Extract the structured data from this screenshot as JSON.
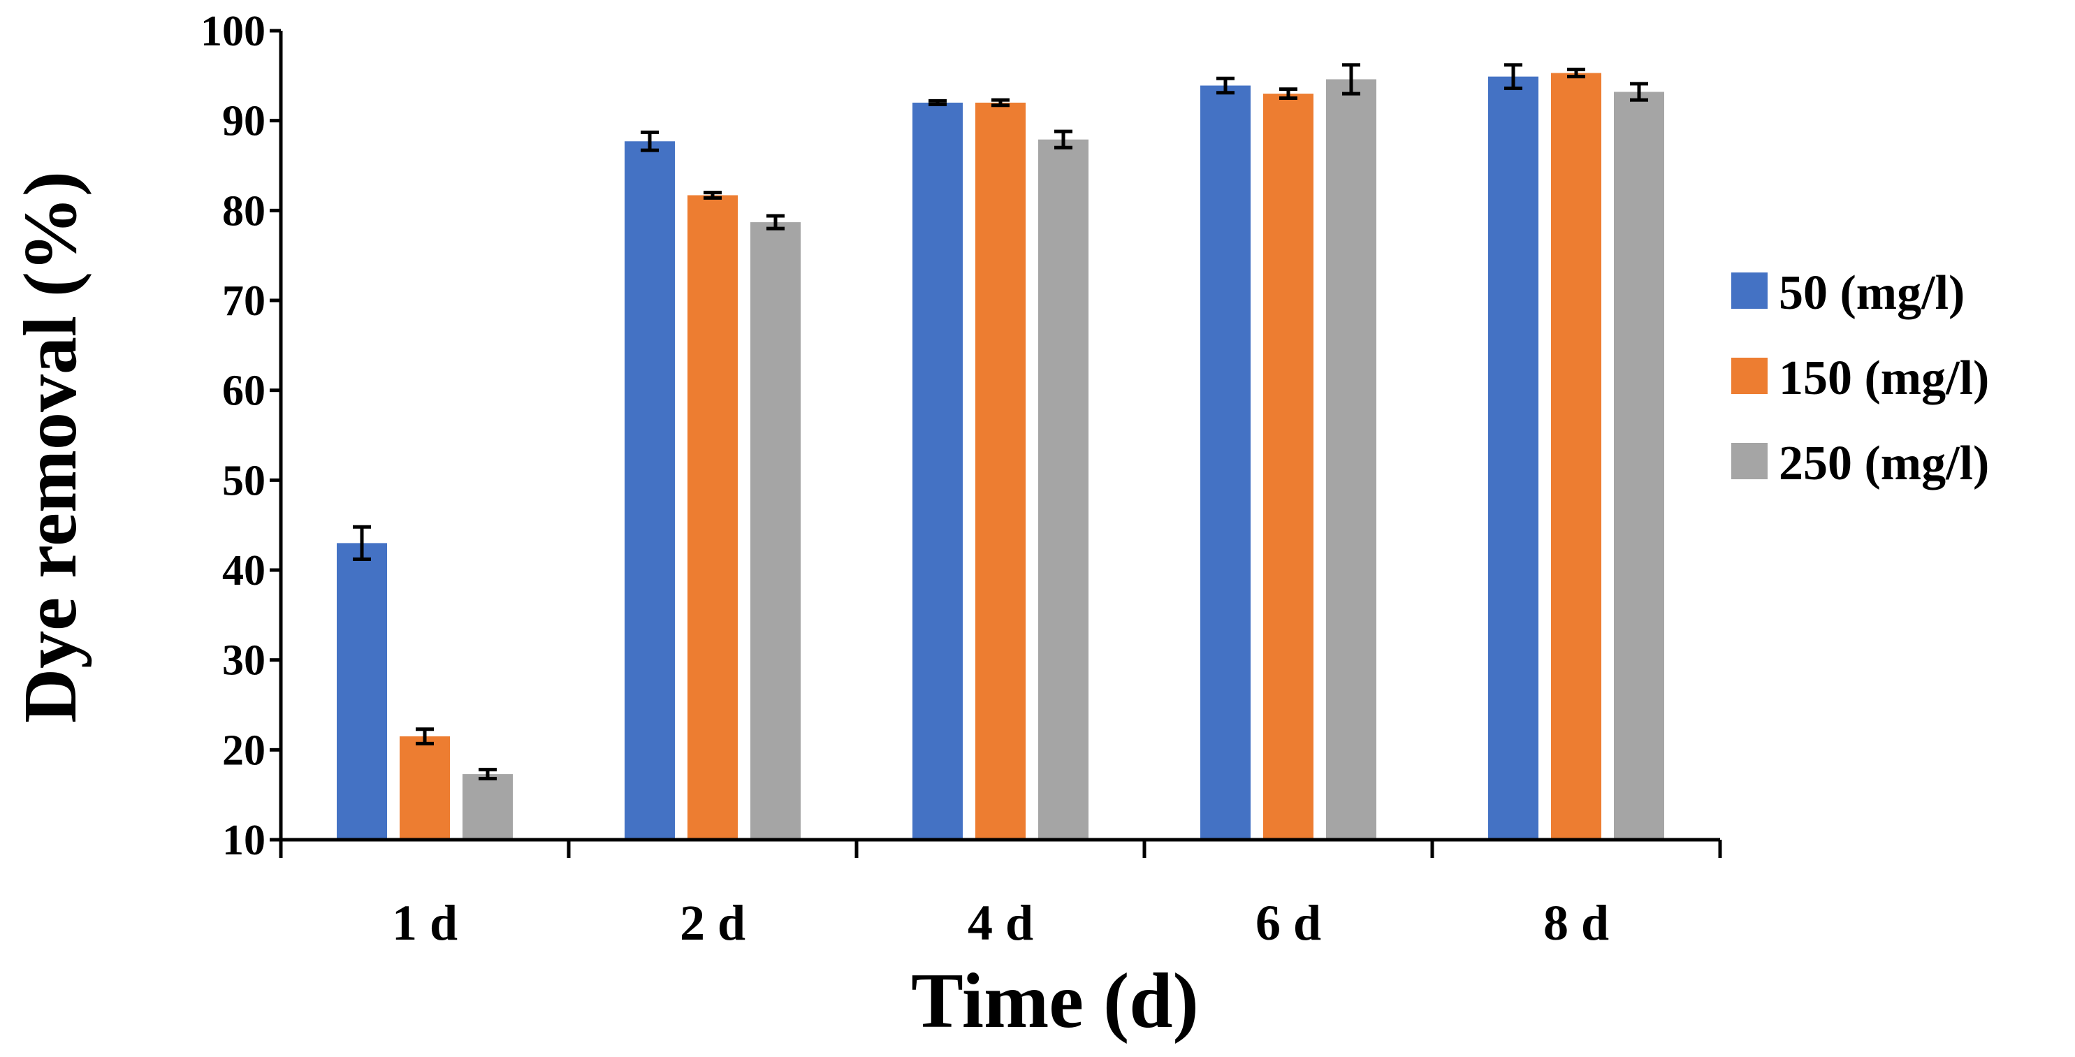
{
  "chart_data": {
    "type": "bar",
    "title": "",
    "xlabel": "Time (d)",
    "ylabel": "Dye removal (%)",
    "ylim": [
      10,
      100
    ],
    "yticks": [
      10,
      20,
      30,
      40,
      50,
      60,
      70,
      80,
      90,
      100
    ],
    "grid": false,
    "legend_position": "right",
    "categories": [
      "1 d",
      "2 d",
      "4 d",
      "6 d",
      "8 d"
    ],
    "series": [
      {
        "name": "50 (mg/l)",
        "color": "#4472C4",
        "values": [
          43.0,
          87.7,
          92.0,
          93.9,
          94.9
        ],
        "errors": [
          1.8,
          1.0,
          0.2,
          0.8,
          1.3
        ]
      },
      {
        "name": "150 (mg/l)",
        "color": "#ED7D31",
        "values": [
          21.5,
          81.7,
          92.0,
          93.0,
          95.3
        ],
        "errors": [
          0.8,
          0.3,
          0.3,
          0.5,
          0.4
        ]
      },
      {
        "name": "250 (mg/l)",
        "color": "#A5A5A5",
        "values": [
          17.3,
          78.7,
          87.9,
          94.6,
          93.2
        ],
        "errors": [
          0.5,
          0.7,
          0.9,
          1.6,
          0.9
        ]
      }
    ]
  }
}
